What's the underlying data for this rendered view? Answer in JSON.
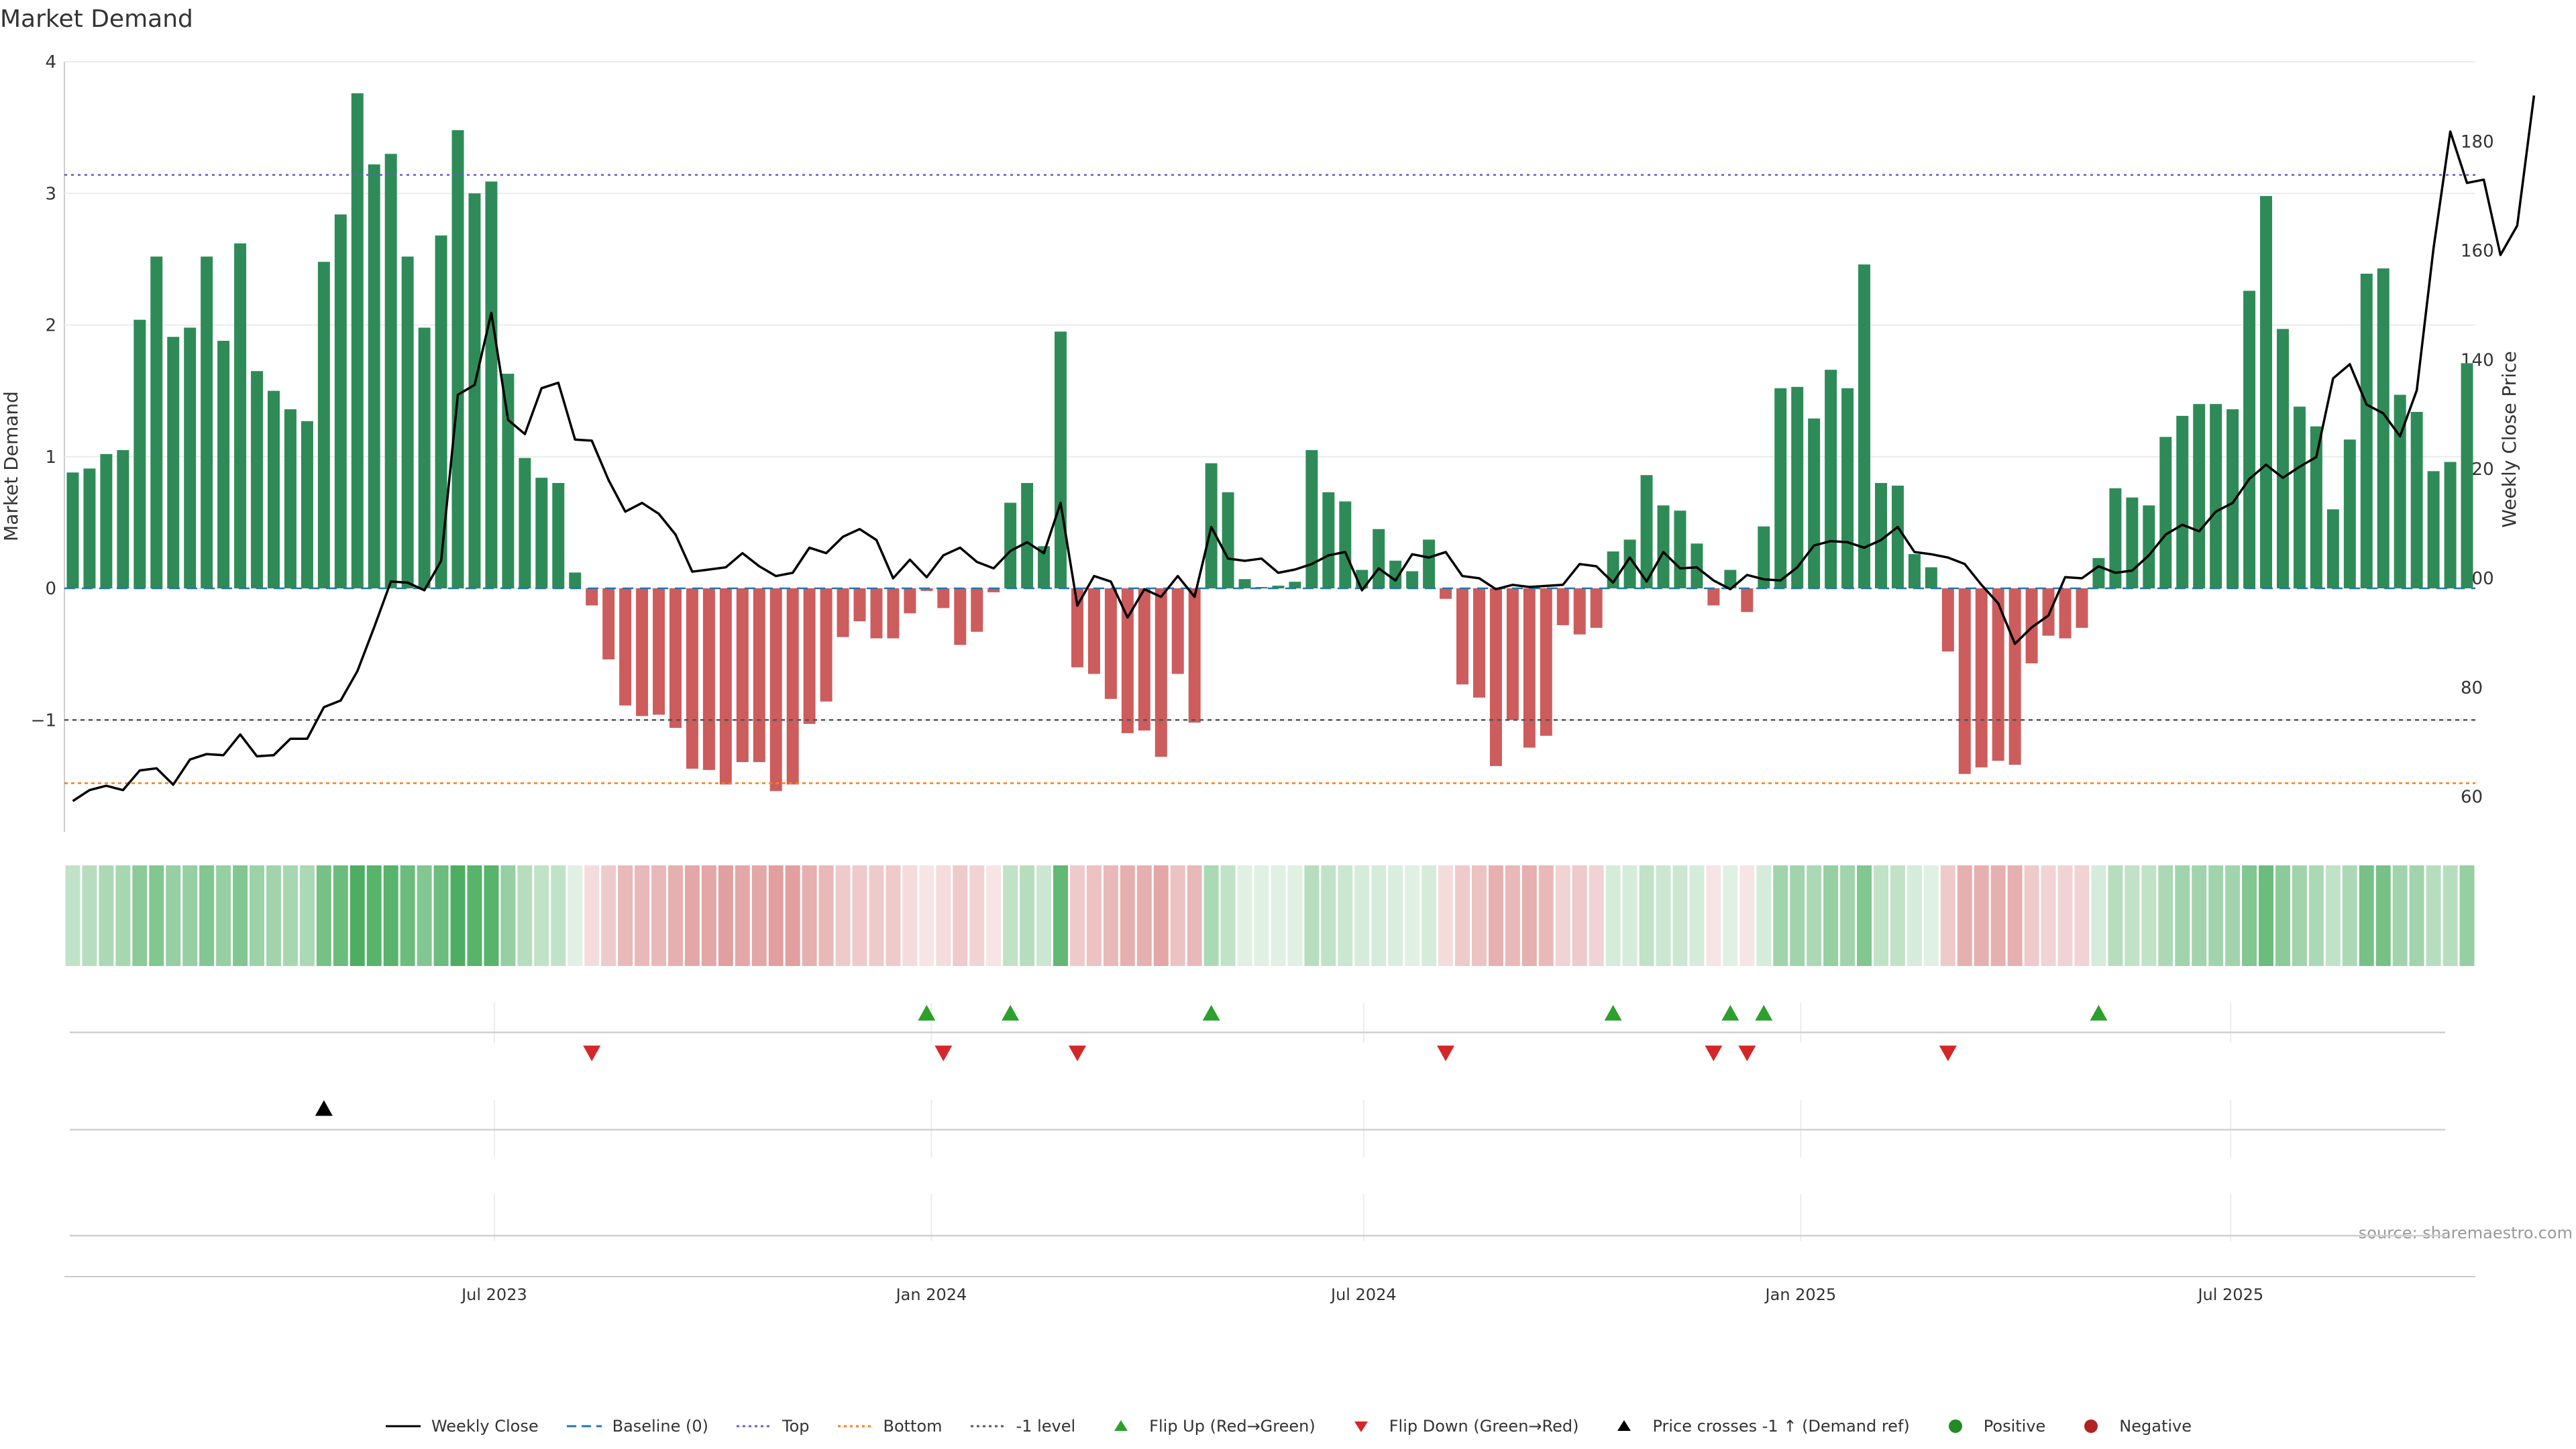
{
  "chart_data": {
    "type": "bar",
    "title": "Market Demand",
    "ylabel": "Market Demand",
    "y2label": "Weekly Close Price",
    "ylim": [
      -1.85,
      4.0
    ],
    "y2lim": [
      55,
      190
    ],
    "yticks": [
      -1,
      0,
      1,
      2,
      3,
      4
    ],
    "yticklabels": [
      "−1",
      "0",
      "1",
      "2",
      "3",
      "4"
    ],
    "y2ticks": [
      60,
      80,
      100,
      120,
      140,
      160,
      180
    ],
    "x_start": "2023-01-01",
    "x_end": "2025-10-12",
    "xticks": [
      {
        "date": "2023-07-01",
        "label": "Jul 2023"
      },
      {
        "date": "2024-01-01",
        "label": "Jan 2024"
      },
      {
        "date": "2024-07-01",
        "label": "Jul 2024"
      },
      {
        "date": "2025-01-01",
        "label": "Jan 2025"
      },
      {
        "date": "2025-07-01",
        "label": "Jul 2025"
      }
    ],
    "top_level": 3.14,
    "bottom_level": -1.48,
    "minus1_level": -1.0,
    "demand": [
      0.88,
      0.91,
      1.02,
      1.05,
      2.04,
      2.52,
      1.91,
      1.98,
      2.52,
      1.88,
      2.62,
      1.65,
      1.5,
      1.36,
      1.27,
      2.48,
      2.84,
      3.76,
      3.22,
      3.3,
      2.52,
      1.98,
      2.68,
      3.48,
      3.0,
      3.09,
      1.63,
      0.99,
      0.84,
      0.8,
      0.12,
      -0.13,
      -0.54,
      -0.89,
      -0.97,
      -0.96,
      -1.06,
      -1.37,
      -1.38,
      -1.49,
      -1.32,
      -1.32,
      -1.54,
      -1.49,
      -1.03,
      -0.86,
      -0.37,
      -0.25,
      -0.38,
      -0.38,
      -0.19,
      -0.02,
      -0.15,
      -0.43,
      -0.33,
      -0.03,
      0.65,
      0.8,
      0.32,
      1.95,
      -0.6,
      -0.65,
      -0.84,
      -1.1,
      -1.08,
      -1.28,
      -0.65,
      -1.02,
      0.95,
      0.73,
      0.07,
      0.01,
      0.02,
      0.05,
      1.05,
      0.73,
      0.66,
      0.14,
      0.45,
      0.21,
      0.13,
      0.37,
      -0.08,
      -0.73,
      -0.83,
      -1.35,
      -1.0,
      -1.21,
      -1.12,
      -0.28,
      -0.35,
      -0.3,
      0.28,
      0.37,
      0.86,
      0.63,
      0.59,
      0.34,
      -0.13,
      0.14,
      -0.18,
      0.47,
      1.52,
      1.53,
      1.29,
      1.66,
      1.52,
      2.46,
      0.8,
      0.78,
      0.26,
      0.16,
      -0.48,
      -1.41,
      -1.36,
      -1.31,
      -1.34,
      -0.57,
      -0.36,
      -0.38,
      -0.3,
      0.23,
      0.76,
      0.69,
      0.63,
      1.15,
      1.31,
      1.4,
      1.4,
      1.36,
      2.26,
      2.98,
      1.97,
      1.38,
      1.23,
      0.6,
      1.13,
      2.39,
      2.43,
      1.47,
      1.34,
      0.89,
      0.96,
      1.71
    ],
    "price": [
      59.2,
      61.2,
      62.0,
      61.2,
      64.8,
      65.2,
      62.2,
      66.8,
      67.8,
      67.6,
      71.4,
      67.4,
      67.6,
      70.6,
      70.6,
      76.4,
      77.6,
      83.0,
      91.0,
      99.4,
      99.2,
      97.8,
      103.2,
      133.6,
      135.4,
      148.6,
      129.0,
      126.4,
      134.8,
      135.8,
      125.4,
      125.2,
      118.0,
      112.2,
      113.8,
      111.8,
      108.0,
      101.2,
      101.6,
      102.0,
      104.6,
      102.2,
      100.4,
      101.0,
      105.6,
      104.6,
      107.6,
      109.0,
      107.0,
      100.0,
      103.4,
      100.2,
      104.2,
      105.6,
      103.0,
      101.8,
      105.0,
      106.6,
      104.6,
      113.8,
      95.0,
      100.4,
      99.4,
      92.8,
      98.0,
      96.6,
      100.4,
      96.6,
      109.4,
      103.6,
      103.2,
      103.6,
      101.0,
      101.6,
      102.6,
      104.2,
      104.8,
      97.8,
      101.8,
      99.6,
      104.4,
      103.8,
      104.8,
      100.4,
      100.0,
      98.0,
      98.8,
      98.4,
      98.6,
      98.8,
      102.6,
      102.2,
      99.2,
      103.8,
      99.4,
      104.8,
      101.8,
      102.0,
      99.6,
      98.0,
      100.6,
      99.8,
      99.6,
      102.0,
      106.0,
      106.8,
      106.6,
      105.6,
      107.0,
      109.4,
      104.8,
      104.4,
      103.8,
      102.6,
      98.8,
      95.4,
      88.0,
      91.0,
      93.2,
      100.2,
      100.0,
      102.2,
      101.0,
      101.4,
      104.2,
      108.0,
      109.8,
      108.6,
      112.2,
      113.8,
      118.2,
      120.8,
      118.4,
      120.4,
      122.2,
      136.6,
      139.2,
      131.8,
      130.2,
      126.0,
      134.4,
      160.4,
      181.8,
      172.4,
      173.0,
      159.2,
      164.6,
      188.4
    ],
    "shade": [
      0.3,
      0.35,
      0.4,
      0.42,
      0.55,
      0.6,
      0.5,
      0.5,
      0.6,
      0.5,
      0.6,
      0.48,
      0.45,
      0.42,
      0.4,
      0.65,
      0.7,
      0.85,
      0.8,
      0.8,
      0.7,
      0.6,
      0.7,
      0.85,
      0.8,
      0.8,
      0.5,
      0.35,
      0.3,
      0.3,
      0.15,
      0.2,
      0.3,
      0.4,
      0.4,
      0.4,
      0.45,
      0.5,
      0.5,
      0.55,
      0.5,
      0.5,
      0.55,
      0.55,
      0.45,
      0.4,
      0.3,
      0.3,
      0.3,
      0.3,
      0.2,
      0.15,
      0.2,
      0.3,
      0.25,
      0.15,
      0.3,
      0.35,
      0.25,
      0.75,
      0.3,
      0.35,
      0.4,
      0.45,
      0.45,
      0.5,
      0.35,
      0.4,
      0.4,
      0.3,
      0.15,
      0.15,
      0.15,
      0.15,
      0.35,
      0.3,
      0.25,
      0.2,
      0.2,
      0.18,
      0.15,
      0.2,
      0.2,
      0.3,
      0.35,
      0.45,
      0.4,
      0.45,
      0.4,
      0.25,
      0.3,
      0.25,
      0.2,
      0.2,
      0.3,
      0.25,
      0.25,
      0.2,
      0.15,
      0.15,
      0.15,
      0.2,
      0.45,
      0.45,
      0.4,
      0.5,
      0.45,
      0.6,
      0.3,
      0.3,
      0.2,
      0.15,
      0.3,
      0.45,
      0.45,
      0.45,
      0.45,
      0.3,
      0.25,
      0.25,
      0.25,
      0.2,
      0.35,
      0.3,
      0.3,
      0.4,
      0.45,
      0.45,
      0.45,
      0.45,
      0.6,
      0.7,
      0.55,
      0.45,
      0.4,
      0.3,
      0.4,
      0.65,
      0.65,
      0.45,
      0.45,
      0.35,
      0.35,
      0.5
    ],
    "flip_up": [
      51,
      56,
      68,
      92,
      99,
      101,
      121
    ],
    "flip_down": [
      31,
      52,
      60,
      82,
      98,
      100,
      112
    ],
    "price_cross": [
      15
    ],
    "source": "source: sharemaestro.com",
    "colors": {
      "positive": "#2e8b57",
      "negative": "#cd5c5c",
      "price": "#000000",
      "baseline": "#1f77b4",
      "top": "#6a5acd",
      "bottom": "#ff7f0e",
      "minus1": "#555555",
      "flip_up": "#2ca02c",
      "flip_down": "#d62728",
      "cross": "#000000",
      "dot_pos": "#228b22",
      "dot_neg": "#b22222"
    },
    "legend": [
      {
        "key": "price",
        "label": "Weekly Close"
      },
      {
        "key": "baseline",
        "label": "Baseline (0)"
      },
      {
        "key": "top",
        "label": "Top"
      },
      {
        "key": "bottom",
        "label": "Bottom"
      },
      {
        "key": "minus1",
        "label": "-1 level"
      },
      {
        "key": "flip_up",
        "label": "Flip Up (Red→Green)"
      },
      {
        "key": "flip_down",
        "label": "Flip Down (Green→Red)"
      },
      {
        "key": "cross",
        "label": "Price crosses -1 ↑ (Demand ref)"
      },
      {
        "key": "dot_pos",
        "label": "Positive"
      },
      {
        "key": "dot_neg",
        "label": "Negative"
      }
    ]
  }
}
